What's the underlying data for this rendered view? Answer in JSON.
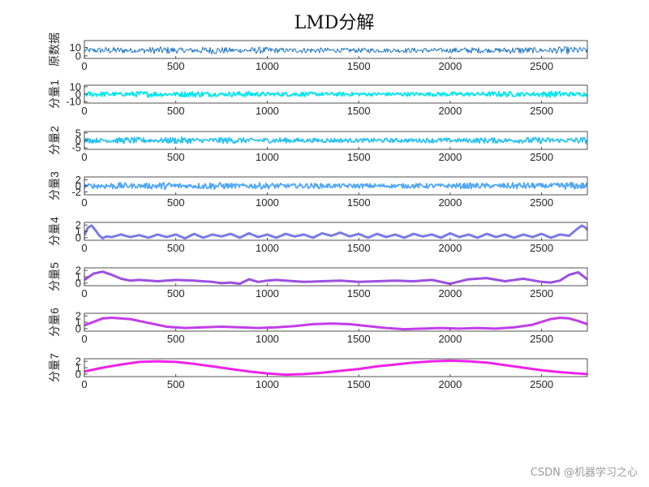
{
  "chart_data": {
    "type": "line",
    "title": "LMD分解",
    "x_ticks": [
      0,
      500,
      1000,
      1500,
      2000,
      2500
    ],
    "xlim": [
      0,
      2750
    ],
    "grid": false,
    "panels": [
      {
        "ylabel": "原数据",
        "color": "#1f77c4",
        "ylim": [
          -3,
          18
        ],
        "y_ticks": [
          0,
          10
        ],
        "y_tick_labels": [
          "0",
          "10"
        ],
        "series": {
          "type": "noise",
          "amplitude": 4.5,
          "center": 6.5,
          "density": 1.0
        }
      },
      {
        "ylabel": "分量1",
        "color": "#00e5ee",
        "ylim": [
          -12,
          12
        ],
        "y_ticks": [
          -10,
          0,
          10
        ],
        "y_tick_labels": [
          "-10",
          "0",
          "10"
        ],
        "series": {
          "type": "noise",
          "amplitude": 4.0,
          "center": 0,
          "density": 1.0
        }
      },
      {
        "ylabel": "分量2",
        "color": "#2fc3ee",
        "ylim": [
          -6,
          6
        ],
        "y_ticks": [
          -5,
          0,
          5
        ],
        "y_tick_labels": [
          "-5",
          "0",
          "5"
        ],
        "series": {
          "type": "noise",
          "amplitude": 2.2,
          "center": 0,
          "density": 0.8
        }
      },
      {
        "ylabel": "分量3",
        "color": "#52a8f7",
        "ylim": [
          -3,
          3
        ],
        "y_ticks": [
          -2,
          0,
          2
        ],
        "y_tick_labels": [
          "-2",
          "0",
          "2"
        ],
        "series": {
          "type": "noise",
          "amplitude": 1.2,
          "center": 0,
          "density": 0.6
        }
      },
      {
        "ylabel": "分量4",
        "color": "#7a7ae8",
        "ylim": [
          -0.4,
          2.4
        ],
        "y_ticks": [
          0,
          1,
          2
        ],
        "y_tick_labels": [
          "0",
          "1",
          "2"
        ],
        "series": {
          "type": "points",
          "x": [
            0,
            20,
            40,
            60,
            80,
            100,
            120,
            150,
            200,
            250,
            300,
            350,
            400,
            450,
            500,
            550,
            600,
            650,
            700,
            750,
            800,
            850,
            900,
            950,
            1000,
            1050,
            1100,
            1150,
            1200,
            1250,
            1300,
            1350,
            1400,
            1450,
            1500,
            1550,
            1600,
            1650,
            1700,
            1750,
            1800,
            1850,
            1900,
            1950,
            2000,
            2050,
            2100,
            2150,
            2200,
            2250,
            2300,
            2350,
            2400,
            2450,
            2500,
            2550,
            2600,
            2650,
            2700,
            2720,
            2740,
            2750
          ],
          "y": [
            0.4,
            1.6,
            1.9,
            1.2,
            0.4,
            -0.1,
            0.2,
            0.1,
            0.5,
            0.1,
            0.4,
            0.0,
            0.5,
            0.1,
            0.5,
            -0.1,
            0.6,
            0.0,
            0.5,
            0.2,
            0.6,
            0.0,
            0.7,
            0.1,
            0.5,
            0.0,
            0.6,
            0.2,
            0.5,
            0.0,
            0.7,
            0.3,
            0.8,
            0.2,
            0.6,
            0.0,
            0.6,
            0.1,
            0.5,
            0.0,
            0.6,
            0.2,
            0.5,
            0.0,
            0.7,
            0.1,
            0.5,
            0.0,
            0.6,
            0.1,
            0.5,
            0.0,
            0.5,
            0.1,
            0.6,
            0.0,
            0.5,
            0.3,
            1.5,
            1.9,
            1.6,
            1.2
          ]
        }
      },
      {
        "ylabel": "分量5",
        "color": "#9c4fe0",
        "ylim": [
          -0.4,
          2.4
        ],
        "y_ticks": [
          0,
          1,
          2
        ],
        "y_tick_labels": [
          "0",
          "1",
          "2"
        ],
        "series": {
          "type": "points",
          "x": [
            0,
            50,
            100,
            150,
            200,
            250,
            300,
            400,
            500,
            600,
            700,
            750,
            800,
            850,
            900,
            950,
            1000,
            1050,
            1100,
            1200,
            1300,
            1400,
            1500,
            1600,
            1700,
            1800,
            1900,
            2000,
            2100,
            2200,
            2300,
            2400,
            2500,
            2550,
            2600,
            2650,
            2700,
            2750
          ],
          "y": [
            0.5,
            1.5,
            1.8,
            1.3,
            0.7,
            0.4,
            0.5,
            0.3,
            0.5,
            0.4,
            0.2,
            0.0,
            0.1,
            -0.1,
            0.6,
            0.2,
            0.4,
            0.5,
            0.4,
            0.2,
            0.3,
            0.4,
            0.2,
            0.3,
            0.4,
            0.3,
            0.5,
            -0.1,
            0.6,
            0.8,
            0.3,
            0.7,
            0.2,
            0.1,
            0.4,
            1.3,
            1.7,
            0.6
          ]
        }
      },
      {
        "ylabel": "分量6",
        "color": "#c23ee8",
        "ylim": [
          -0.4,
          2.4
        ],
        "y_ticks": [
          0,
          1,
          2
        ],
        "y_tick_labels": [
          "0",
          "1",
          "2"
        ],
        "series": {
          "type": "points",
          "x": [
            0,
            100,
            150,
            250,
            350,
            450,
            550,
            650,
            750,
            850,
            950,
            1050,
            1150,
            1250,
            1350,
            1450,
            1550,
            1650,
            1750,
            1850,
            1950,
            2050,
            2150,
            2250,
            2350,
            2450,
            2550,
            2600,
            2650,
            2700,
            2750
          ],
          "y": [
            0.5,
            1.6,
            1.7,
            1.5,
            0.9,
            0.3,
            0.1,
            0.2,
            0.3,
            0.2,
            0.1,
            0.2,
            0.4,
            0.7,
            0.8,
            0.7,
            0.4,
            0.1,
            -0.1,
            0.0,
            0.1,
            0.0,
            0.1,
            0.0,
            0.2,
            0.6,
            1.5,
            1.7,
            1.6,
            1.2,
            0.7
          ]
        }
      },
      {
        "ylabel": "分量7",
        "color": "#ee22e8",
        "ylim": [
          -0.4,
          2.4
        ],
        "y_ticks": [
          0,
          1,
          2
        ],
        "y_tick_labels": [
          "0",
          "1",
          "2"
        ],
        "series": {
          "type": "points",
          "x": [
            0,
            100,
            200,
            300,
            400,
            500,
            600,
            700,
            800,
            900,
            1000,
            1100,
            1200,
            1300,
            1400,
            1500,
            1600,
            1700,
            1800,
            1900,
            2000,
            2100,
            2200,
            2300,
            2400,
            2500,
            2600,
            2700,
            2750
          ],
          "y": [
            0.4,
            1.0,
            1.5,
            1.9,
            2.0,
            1.9,
            1.6,
            1.2,
            0.8,
            0.4,
            0.1,
            -0.1,
            0.0,
            0.2,
            0.5,
            0.8,
            1.2,
            1.5,
            1.8,
            2.0,
            2.1,
            2.0,
            1.8,
            1.4,
            1.0,
            0.6,
            0.3,
            0.1,
            0.0
          ]
        }
      }
    ]
  },
  "watermark": "CSDN @机器学习之心"
}
